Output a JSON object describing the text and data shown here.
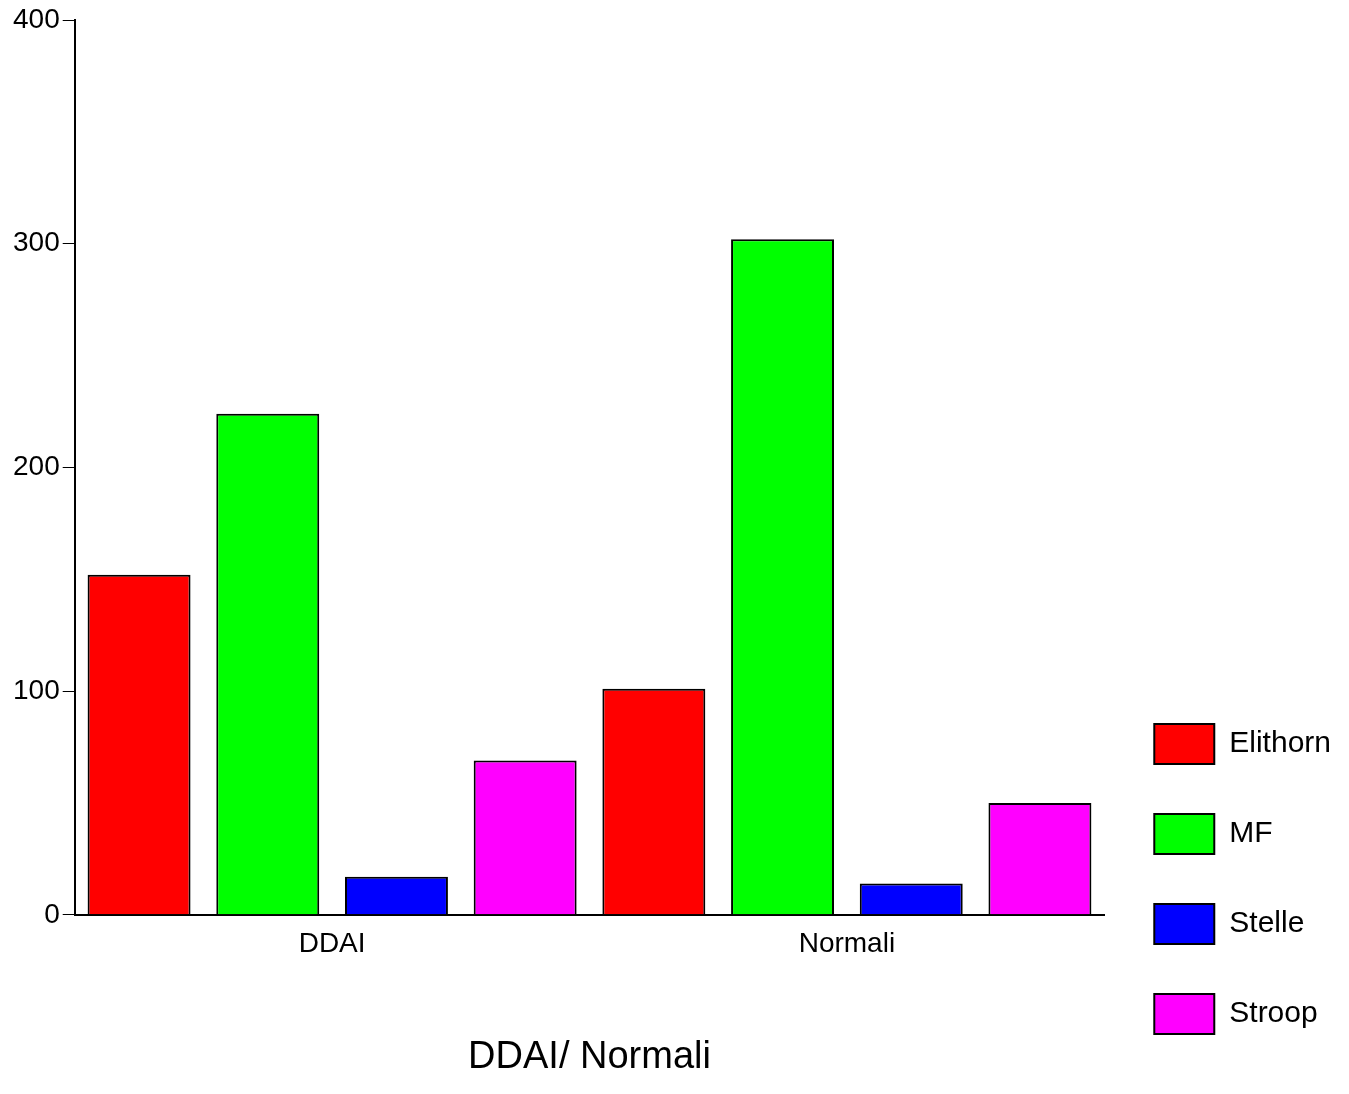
{
  "chart_data": {
    "type": "bar",
    "xlabel": "DDAI/ Normali",
    "categories": [
      "DDAI",
      "Normali"
    ],
    "series": [
      {
        "name": "Elithorn",
        "color": "#ff0000",
        "values": [
          152,
          101
        ]
      },
      {
        "name": "MF",
        "color": "#00ff00",
        "values": [
          224,
          302
        ]
      },
      {
        "name": "Stelle",
        "color": "#0000ff",
        "values": [
          17,
          14
        ]
      },
      {
        "name": "Stroop",
        "color": "#ff00ff",
        "values": [
          69,
          50
        ]
      }
    ],
    "ylim": [
      0,
      400
    ],
    "yticks": [
      0,
      100,
      200,
      300,
      400
    ],
    "grid": false,
    "legend": "right"
  }
}
